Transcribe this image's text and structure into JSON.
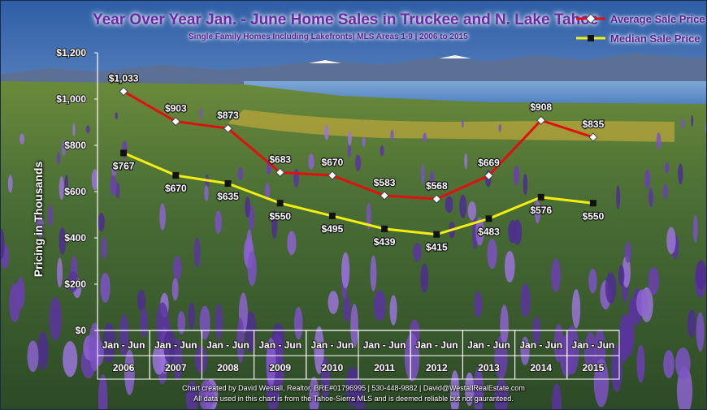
{
  "chart_data": {
    "type": "line",
    "title": "Year Over Year Jan. - June Home Sales in Truckee and N. Lake Tahoe",
    "subtitle": "Single Family Homes Including Lakefronts| MLS Areas 1-9 | 2006 to 2015",
    "ylabel": "Pricing in Thousands",
    "ylim": [
      0,
      1200
    ],
    "yticks": [
      "$0",
      "$200",
      "$400",
      "$600",
      "$800",
      "$1,000",
      "$1,200"
    ],
    "categories": [
      "2006",
      "2007",
      "2008",
      "2009",
      "2010",
      "2011",
      "2012",
      "2013",
      "2014",
      "2015"
    ],
    "category_prefix": "Jan - Jun",
    "grid": false,
    "legend_position": "top-right",
    "series": [
      {
        "name": "Average Sale Price",
        "color": "#e01010",
        "marker": "diamond",
        "values": [
          1033,
          903,
          873,
          683,
          670,
          583,
          568,
          669,
          908,
          835
        ],
        "labels": [
          "$1,033",
          "$903",
          "$873",
          "$683",
          "$670",
          "$583",
          "$568",
          "$669",
          "$908",
          "$835"
        ]
      },
      {
        "name": "Median Sale Price",
        "color": "#f5ef10",
        "marker": "square",
        "values": [
          767,
          670,
          635,
          550,
          495,
          439,
          415,
          483,
          576,
          550
        ],
        "labels": [
          "$767",
          "$670",
          "$635",
          "$550",
          "$495",
          "$439",
          "$415",
          "$483",
          "$576",
          "$550"
        ]
      }
    ]
  },
  "footer": {
    "line1": "Chart created by David Westall, Realtor, BRE#01796995 | 530-448-9882 | David@WestallRealEstate.com",
    "line2": "All data used in this chart is from the Tahoe-Sierra MLS and is deemed reliable but  not gauranteed."
  },
  "background": {
    "sky": "#4d7fbf",
    "lake": "#5b8ec4",
    "flowers": "#7b4fb8",
    "foliage": "#3f6a2c"
  }
}
